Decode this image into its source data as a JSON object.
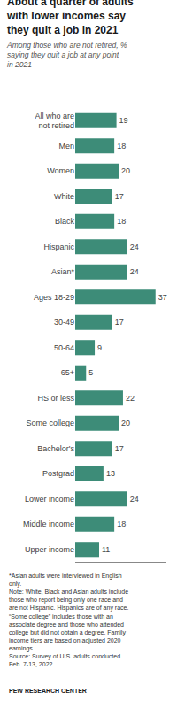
{
  "chart_data": {
    "type": "bar",
    "orientation": "horizontal",
    "title": "About a quarter of adults\nwith lower incomes say\nthey quit a job in 2021",
    "subtitle": "Among those who are not retired, %\nsaying they quit a job at any point\nin 2021",
    "categories": [
      "All who are\nnot retired",
      "Men",
      "Women",
      "White",
      "Black",
      "Hispanic",
      "Asian*",
      "Ages 18-29",
      "30-49",
      "50-64",
      "65+",
      "HS or less",
      "Some college",
      "Bachelor's",
      "Postgrad",
      "Lower income",
      "Middle income",
      "Upper income"
    ],
    "values": [
      19,
      18,
      20,
      17,
      18,
      24,
      24,
      37,
      17,
      9,
      5,
      22,
      20,
      17,
      13,
      24,
      18,
      11
    ],
    "color": "#3d8c78",
    "xlim": [
      0,
      42
    ],
    "data_labels": true,
    "tick_labels": "y",
    "grid": false,
    "annotations": [
      "*Asian adults were interviewed in English\nonly.\nNote: White, Black and Asian adults include\nthose who report being only one race and\nare not Hispanic. Hispanics are of any race.\n“Some college” includes those with an\nassociate degree and those who attended\ncollege but did not obtain a degree. Family\nincome tiers are based on adjusted 2020\nearnings.\nSource: Survey of U.S. adults conducted\nFeb. 7-13, 2022.",
      "PEW RESEARCH CENTER"
    ]
  }
}
